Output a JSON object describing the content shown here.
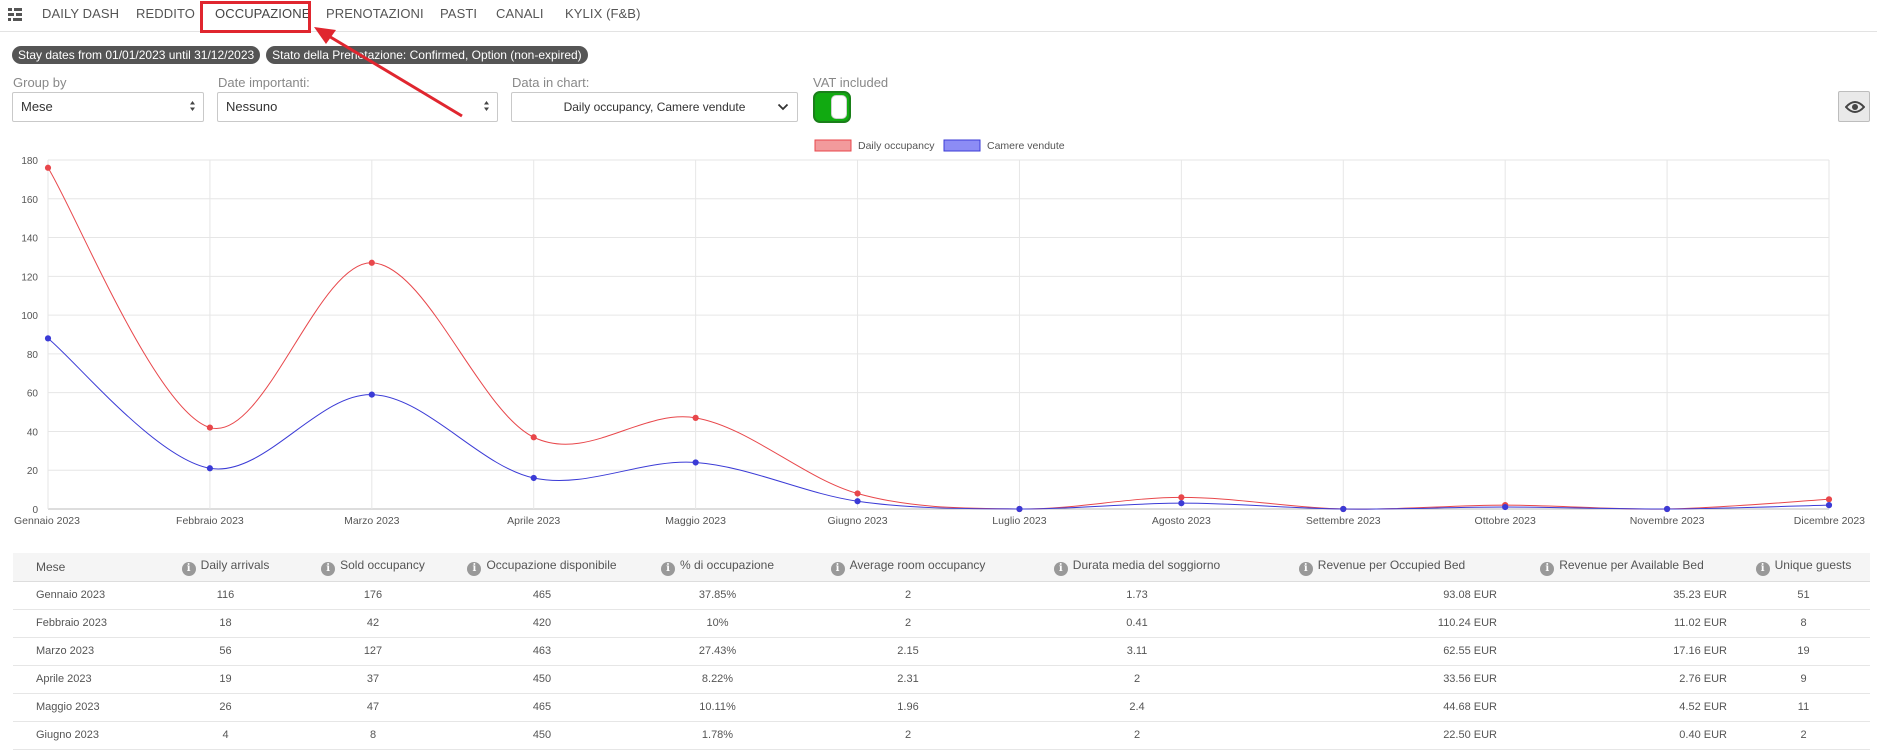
{
  "nav": {
    "tabs": [
      {
        "label": "DAILY DASH"
      },
      {
        "label": "REDDITO"
      },
      {
        "label": "OCCUPAZIONE"
      },
      {
        "label": "PRENOTAZIONI"
      },
      {
        "label": "PASTI"
      },
      {
        "label": "CANALI"
      },
      {
        "label": "KYLIX (F&B)"
      }
    ],
    "active": "OCCUPAZIONE"
  },
  "filters": {
    "stay_dates": "Stay dates from 01/01/2023 until 31/12/2023",
    "status": "Stato della Prenotazione: Confirmed, Option (non-expired)"
  },
  "controls": {
    "group_by": {
      "label": "Group by",
      "value": "Mese"
    },
    "dates": {
      "label": "Date importanti:",
      "value": "Nessuno"
    },
    "data_in_chart": {
      "label": "Data in chart:",
      "value": "Daily occupancy, Camere vendute"
    },
    "vat": {
      "label": "VAT included",
      "enabled": true
    }
  },
  "colors": {
    "series1": "#e8474b",
    "series2": "#3b3bd6",
    "highlight": "#e0262f",
    "toggle_on": "#11aa11"
  },
  "chart_data": {
    "type": "line",
    "categories": [
      "Gennaio 2023",
      "Febbraio 2023",
      "Marzo 2023",
      "Aprile  2023",
      "Maggio 2023",
      "Giugno  2023",
      "Luglio 2023",
      "Agosto 2023",
      "Settembre 2023",
      "Ottobre 2023",
      "Novembre 2023",
      "Dicembre 2023"
    ],
    "series": [
      {
        "name": "Daily occupancy",
        "values": [
          176,
          42,
          127,
          37,
          47,
          8,
          0,
          6,
          0,
          2,
          0,
          5
        ]
      },
      {
        "name": "Camere vendute",
        "values": [
          88,
          21,
          59,
          16,
          24,
          4,
          0,
          3,
          0,
          1,
          0,
          2
        ]
      }
    ],
    "ylim": [
      0,
      180
    ],
    "yticks": [
      "0",
      "20",
      "40",
      "60",
      "80",
      "100",
      "120",
      "140",
      "160",
      "180"
    ],
    "grid": true,
    "legend": "top-center"
  },
  "table": {
    "columns": [
      "Mese",
      "Daily arrivals",
      "Sold occupancy",
      "Occupazione disponibile",
      "% di occupazione",
      "Average room occupancy",
      "Durata media del soggiorno",
      "Revenue per Occupied Bed",
      "Revenue per Available Bed",
      "Unique guests"
    ],
    "rows": [
      [
        "Gennaio 2023",
        "116",
        "176",
        "465",
        "37.85%",
        "2",
        "1.73",
        "93.08 EUR",
        "35.23 EUR",
        "51"
      ],
      [
        "Febbraio 2023",
        "18",
        "42",
        "420",
        "10%",
        "2",
        "0.41",
        "110.24 EUR",
        "11.02 EUR",
        "8"
      ],
      [
        "Marzo 2023",
        "56",
        "127",
        "463",
        "27.43%",
        "2.15",
        "3.11",
        "62.55 EUR",
        "17.16 EUR",
        "19"
      ],
      [
        "Aprile 2023",
        "19",
        "37",
        "450",
        "8.22%",
        "2.31",
        "2",
        "33.56 EUR",
        "2.76 EUR",
        "9"
      ],
      [
        "Maggio 2023",
        "26",
        "47",
        "465",
        "10.11%",
        "1.96",
        "2.4",
        "44.68 EUR",
        "4.52 EUR",
        "11"
      ],
      [
        "Giugno 2023",
        "4",
        "8",
        "450",
        "1.78%",
        "2",
        "2",
        "22.50 EUR",
        "0.40 EUR",
        "2"
      ]
    ]
  }
}
